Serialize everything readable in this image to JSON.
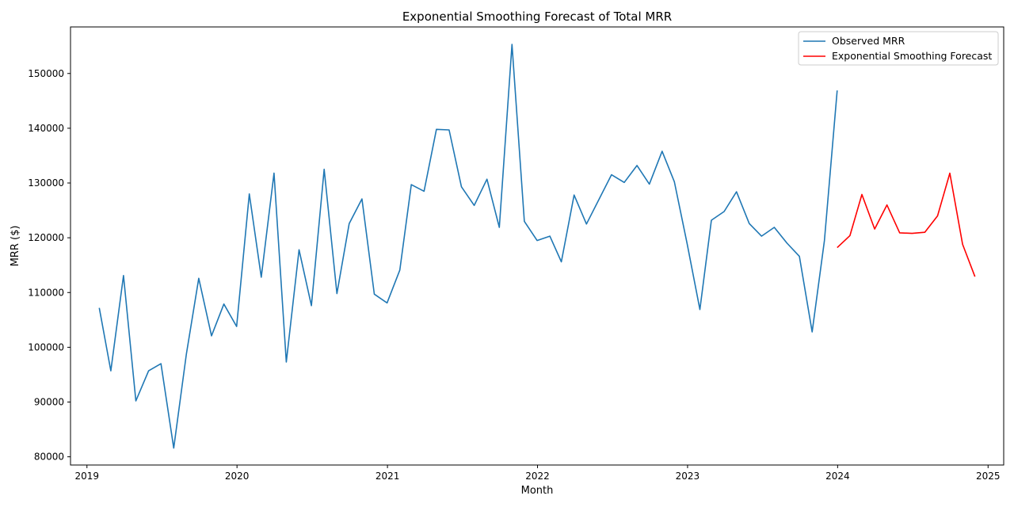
{
  "chart_data": {
    "type": "line",
    "title": "Exponential Smoothing Forecast of Total MRR",
    "xlabel": "Month",
    "ylabel": "MRR ($)",
    "x_ticks": [
      "2019",
      "2020",
      "2021",
      "2022",
      "2023",
      "2024",
      "2025"
    ],
    "y_ticks": [
      "80000",
      "90000",
      "100000",
      "110000",
      "120000",
      "130000",
      "140000",
      "150000"
    ],
    "ylim": [
      78500,
      158500
    ],
    "xlim": [
      "2018-11-22",
      "2025-02-08"
    ],
    "grid": false,
    "legend_position": "top-right",
    "series": [
      {
        "name": "Observed MRR",
        "color": "#1f77b4",
        "x": [
          "2019-01-31",
          "2019-02-28",
          "2019-03-31",
          "2019-04-30",
          "2019-05-31",
          "2019-06-30",
          "2019-07-31",
          "2019-08-31",
          "2019-09-30",
          "2019-10-31",
          "2019-11-30",
          "2019-12-31",
          "2020-01-31",
          "2020-02-29",
          "2020-03-31",
          "2020-04-30",
          "2020-05-31",
          "2020-06-30",
          "2020-07-31",
          "2020-08-31",
          "2020-09-30",
          "2020-10-31",
          "2020-11-30",
          "2020-12-31",
          "2021-01-31",
          "2021-02-28",
          "2021-03-31",
          "2021-04-30",
          "2021-05-31",
          "2021-06-30",
          "2021-07-31",
          "2021-08-31",
          "2021-09-30",
          "2021-10-31",
          "2021-11-30",
          "2021-12-31",
          "2022-01-31",
          "2022-02-28",
          "2022-03-31",
          "2022-04-30",
          "2022-05-31",
          "2022-06-30",
          "2022-07-31",
          "2022-08-31",
          "2022-09-30",
          "2022-10-31",
          "2022-11-30",
          "2022-12-31",
          "2023-01-31",
          "2023-02-28",
          "2023-03-31",
          "2023-04-30",
          "2023-05-31",
          "2023-06-30",
          "2023-07-31",
          "2023-08-31",
          "2023-09-30",
          "2023-10-31",
          "2023-11-30",
          "2023-12-31"
        ],
        "values": [
          107200,
          95700,
          113100,
          90200,
          95700,
          97000,
          81600,
          98800,
          112600,
          102100,
          107900,
          103800,
          128000,
          112800,
          131800,
          97300,
          117800,
          107600,
          132500,
          109800,
          122600,
          127100,
          109700,
          108100,
          114100,
          129700,
          128500,
          139800,
          139700,
          129300,
          125900,
          130700,
          121900,
          155300,
          123000,
          119500,
          120300,
          115600,
          127800,
          122500,
          127100,
          131500,
          130100,
          133200,
          129800,
          135800,
          130200,
          118900,
          106900,
          123200,
          124800,
          128400,
          122600,
          120300,
          121900,
          119000,
          116600,
          102800,
          119500,
          146900
        ]
      },
      {
        "name": "Exponential Smoothing Forecast",
        "color": "#ff0000",
        "x": [
          "2023-12-31",
          "2024-01-31",
          "2024-02-29",
          "2024-03-31",
          "2024-04-30",
          "2024-05-31",
          "2024-06-30",
          "2024-07-31",
          "2024-08-31",
          "2024-09-30",
          "2024-10-31",
          "2024-11-30"
        ],
        "values": [
          118200,
          120400,
          127900,
          121600,
          126000,
          120900,
          120800,
          121000,
          124000,
          131800,
          118800,
          112900
        ]
      }
    ]
  }
}
